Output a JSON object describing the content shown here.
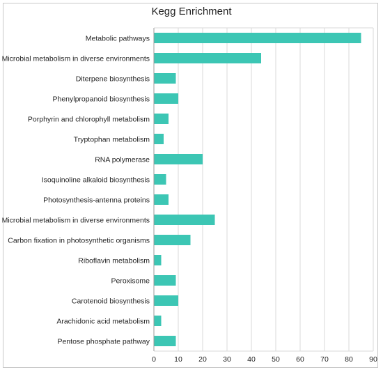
{
  "chart_data": {
    "type": "bar",
    "orientation": "horizontal",
    "title": "Kegg Enrichment",
    "xlabel": "",
    "ylabel": "",
    "categories": [
      "Metabolic pathways",
      "Microbial metabolism in diverse environments",
      "Diterpene biosynthesis",
      "Phenylpropanoid biosynthesis",
      "Porphyrin and chlorophyll metabolism",
      "Tryptophan metabolism",
      "RNA polymerase",
      "Isoquinoline alkaloid biosynthesis",
      "Photosynthesis-antenna proteins",
      "Microbial metabolism in diverse environments",
      "Carbon fixation in photosynthetic organisms",
      "Riboflavin metabolism",
      "Peroxisome",
      "Carotenoid biosynthesis",
      "Arachidonic acid metabolism",
      "Pentose phosphate pathway"
    ],
    "values": [
      85,
      44,
      9,
      10,
      6,
      4,
      20,
      5,
      6,
      25,
      15,
      3,
      9,
      10,
      3,
      9
    ],
    "xlim": [
      0,
      90
    ],
    "xticks": [
      0,
      10,
      20,
      30,
      40,
      50,
      60,
      70,
      80,
      90
    ],
    "grid": true,
    "legend": "none",
    "bar_color": "#3cc6b4",
    "grid_color": "#d9d9d9"
  }
}
